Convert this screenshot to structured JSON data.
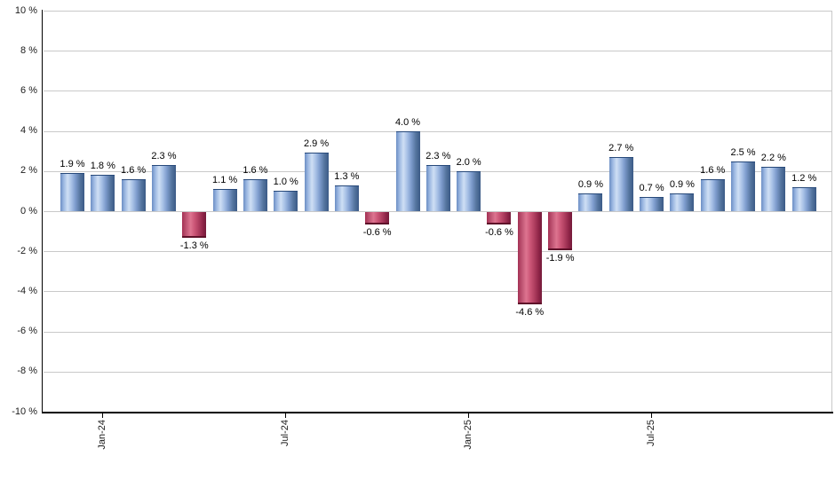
{
  "chart_data": {
    "type": "bar",
    "title": "",
    "unit": "%",
    "values": [
      1.9,
      1.8,
      1.6,
      2.3,
      -1.3,
      1.1,
      1.6,
      1.0,
      2.9,
      1.3,
      -0.6,
      4.0,
      2.3,
      2.0,
      -0.6,
      -4.6,
      -1.9,
      0.9,
      2.7,
      0.7,
      0.9,
      1.6,
      2.5,
      2.2,
      1.2
    ],
    "bar_labels": [
      "1.9 %",
      "1.8 %",
      "1.6 %",
      "2.3 %",
      "-1.3 %",
      "1.1 %",
      "1.6 %",
      "1.0 %",
      "2.9 %",
      "1.3 %",
      "-0.6 %",
      "4.0 %",
      "2.3 %",
      "2.0 %",
      "-0.6 %",
      "-4.6 %",
      "-1.9 %",
      "0.9 %",
      "2.7 %",
      "0.7 %",
      "0.9 %",
      "1.6 %",
      "2.5 %",
      "2.2 %",
      "1.2 %"
    ],
    "x_ticks": [
      {
        "label": "Jan-24",
        "bar_index": 1
      },
      {
        "label": "Jul-24",
        "bar_index": 7
      },
      {
        "label": "Jan-25",
        "bar_index": 13
      },
      {
        "label": "Jul-25",
        "bar_index": 19
      }
    ],
    "y_ticks": [
      {
        "value": 10,
        "label": "10 %"
      },
      {
        "value": 8,
        "label": "8 %"
      },
      {
        "value": 6,
        "label": "6 %"
      },
      {
        "value": 4,
        "label": "4 %"
      },
      {
        "value": 2,
        "label": "2 %"
      },
      {
        "value": 0,
        "label": "0 %"
      },
      {
        "value": -2,
        "label": "-2 %"
      },
      {
        "value": -4,
        "label": "-4 %"
      },
      {
        "value": -6,
        "label": "-6 %"
      },
      {
        "value": -8,
        "label": "-8 %"
      },
      {
        "value": -10,
        "label": "-10 %"
      }
    ],
    "ylim": [
      -10,
      10
    ],
    "grid": true,
    "legend_position": "none",
    "colors": {
      "positive_bar": "#7f9dce",
      "positive_highlight": "#cfdff4",
      "positive_edge": "#3b5a86",
      "negative_bar": "#cb5576",
      "negative_highlight": "#dd7490",
      "negative_edge": "#741b3a",
      "gridline": "#c9c9c9",
      "axis": "#000000",
      "label_text": "#000000"
    }
  }
}
